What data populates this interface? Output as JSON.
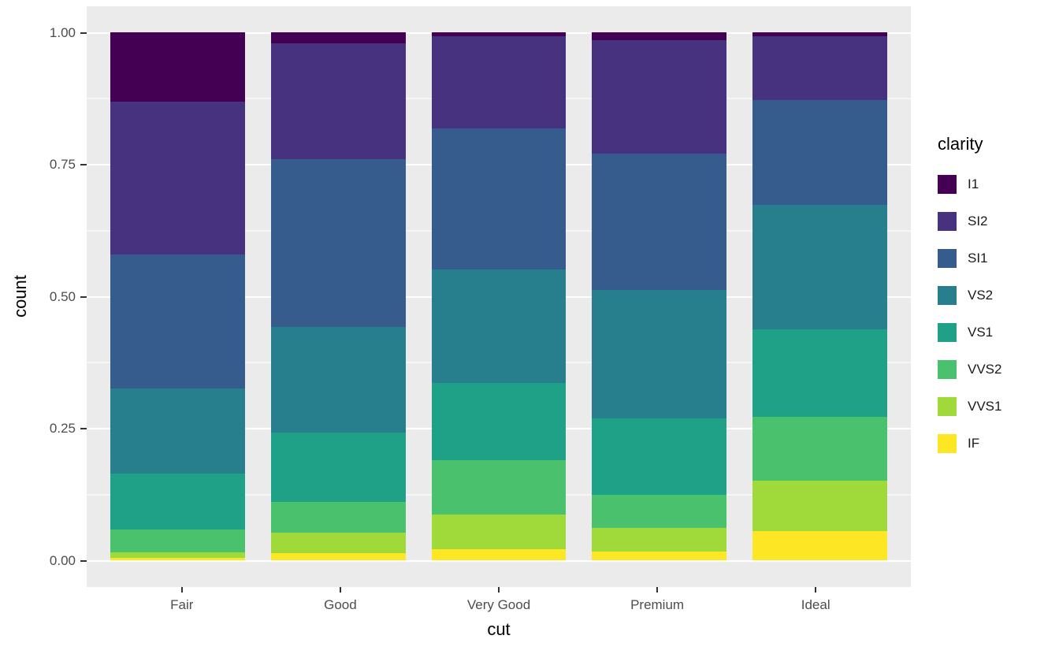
{
  "figure": {
    "background": "#FFFFFF",
    "panel_background": "#EBEBEB",
    "gridline_color": "#FFFFFF",
    "tick_color": "#333333",
    "tick_label_color": "#4D4D4D",
    "axis_title_color": "#000000"
  },
  "chart_data": {
    "type": "bar",
    "stacked": true,
    "normalized": true,
    "title": "",
    "xlabel": "cut",
    "ylabel": "count",
    "legend_title": "clarity",
    "legend_position": "right",
    "grid": true,
    "ylim": [
      0,
      1
    ],
    "y_ticks": [
      0,
      0.25,
      0.5,
      0.75,
      1
    ],
    "y_tick_labels": [
      "0.00",
      "0.25",
      "0.50",
      "0.75",
      "1.00"
    ],
    "y_minor_ticks": [
      0.125,
      0.375,
      0.625,
      0.875
    ],
    "categories": [
      "Fair",
      "Good",
      "Very Good",
      "Premium",
      "Ideal"
    ],
    "series": [
      {
        "name": "I1",
        "color": "#440154",
        "values": [
          0.1304,
          0.0196,
          0.007,
          0.0149,
          0.0068
        ]
      },
      {
        "name": "SI2",
        "color": "#46327E",
        "values": [
          0.2894,
          0.2203,
          0.1738,
          0.2138,
          0.1206
        ]
      },
      {
        "name": "SI1",
        "color": "#365C8D",
        "values": [
          0.2534,
          0.318,
          0.2682,
          0.2592,
          0.1987
        ]
      },
      {
        "name": "VS2",
        "color": "#277F8E",
        "values": [
          0.1621,
          0.1993,
          0.2144,
          0.2434,
          0.2353
        ]
      },
      {
        "name": "VS1",
        "color": "#1FA187",
        "values": [
          0.1056,
          0.1321,
          0.1469,
          0.1442,
          0.1665
        ]
      },
      {
        "name": "VVS2",
        "color": "#4AC16D",
        "values": [
          0.0429,
          0.0583,
          0.1022,
          0.0631,
          0.1209
        ]
      },
      {
        "name": "VVS1",
        "color": "#9FDA3A",
        "values": [
          0.0106,
          0.0379,
          0.0653,
          0.0447,
          0.095
        ]
      },
      {
        "name": "IF",
        "color": "#FDE725",
        "values": [
          0.0056,
          0.0145,
          0.0222,
          0.0167,
          0.0562
        ]
      }
    ]
  }
}
